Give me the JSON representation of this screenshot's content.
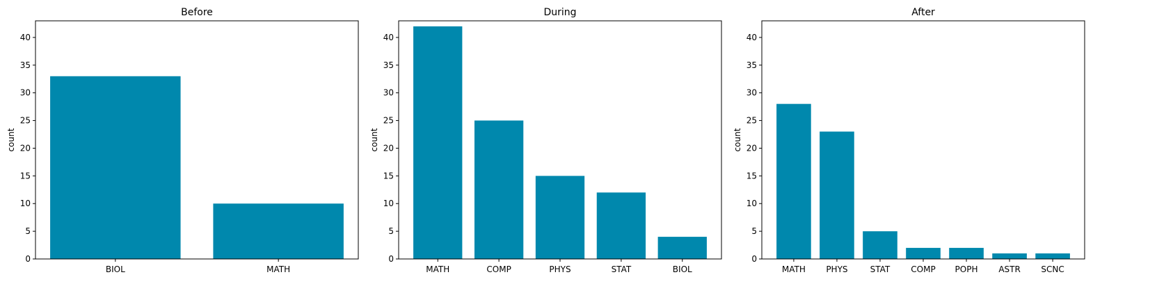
{
  "figure": {
    "bar_color": "#0088AD",
    "axis_color": "#000000",
    "background": "#ffffff"
  },
  "chart_data": [
    {
      "type": "bar",
      "title": "Before",
      "ylabel": "count",
      "xlabel": "",
      "ylim": [
        0,
        43
      ],
      "yticks": [
        0,
        5,
        10,
        15,
        20,
        25,
        30,
        35,
        40
      ],
      "categories": [
        "BIOL",
        "MATH"
      ],
      "values": [
        33,
        10
      ],
      "grid": false
    },
    {
      "type": "bar",
      "title": "During",
      "ylabel": "count",
      "xlabel": "",
      "ylim": [
        0,
        43
      ],
      "yticks": [
        0,
        5,
        10,
        15,
        20,
        25,
        30,
        35,
        40
      ],
      "categories": [
        "MATH",
        "COMP",
        "PHYS",
        "STAT",
        "BIOL"
      ],
      "values": [
        42,
        25,
        15,
        12,
        4
      ],
      "grid": false
    },
    {
      "type": "bar",
      "title": "After",
      "ylabel": "count",
      "xlabel": "",
      "ylim": [
        0,
        43
      ],
      "yticks": [
        0,
        5,
        10,
        15,
        20,
        25,
        30,
        35,
        40
      ],
      "categories": [
        "MATH",
        "PHYS",
        "STAT",
        "COMP",
        "POPH",
        "ASTR",
        "SCNC"
      ],
      "values": [
        28,
        23,
        5,
        2,
        2,
        1,
        1
      ],
      "grid": false
    }
  ]
}
